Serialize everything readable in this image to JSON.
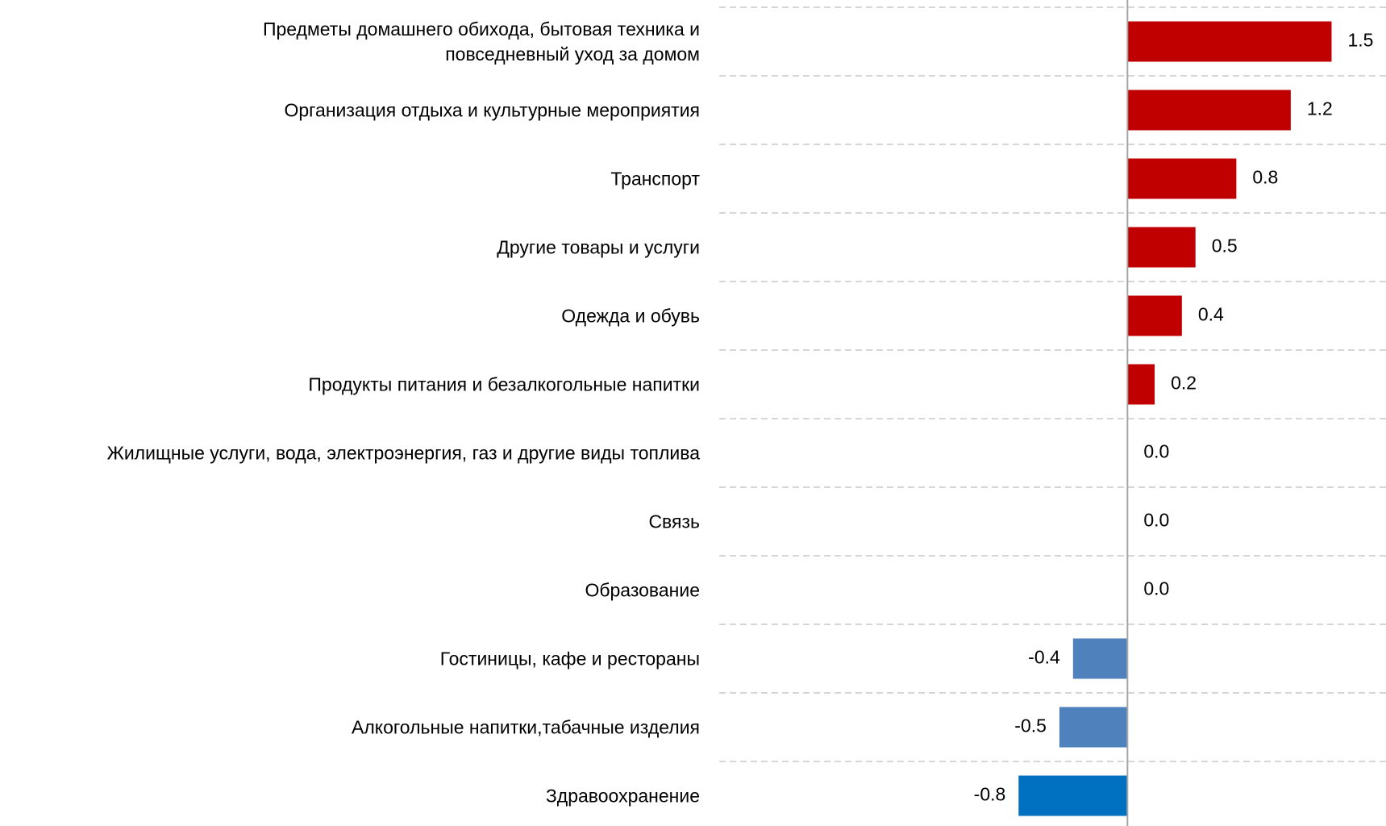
{
  "chart_data": {
    "type": "barh",
    "categories": [
      "Предметы домашнего обихода, бытовая техника и\nповседневный уход за домом",
      "Организация отдыха и культурные мероприятия",
      "Транспорт",
      "Другие товары и услуги",
      "Одежда и обувь",
      "Продукты питания и безалкогольные напитки",
      "Жилищные услуги, вода, электроэнергия, газ и другие виды топлива",
      "Связь",
      "Образование",
      "Гостиницы, кафе и рестораны",
      "Алкогольные напитки,табачные изделия",
      "Здравоохранение"
    ],
    "values": [
      1.5,
      1.2,
      0.8,
      0.5,
      0.4,
      0.2,
      0.0,
      0.0,
      0.0,
      -0.4,
      -0.5,
      -0.8
    ],
    "value_labels": [
      "1.5",
      "1.2",
      "0.8",
      "0.5",
      "0.4",
      "0.2",
      "0.0",
      "0.0",
      "0.0",
      "-0.4",
      "-0.5",
      "-0.8"
    ],
    "colors": [
      "#c00000",
      "#c00000",
      "#c00000",
      "#c00000",
      "#c00000",
      "#c00000",
      "#c00000",
      "#c00000",
      "#c00000",
      "#4f81bd",
      "#4f81bd",
      "#0070c0"
    ],
    "xlim": [
      -3,
      1.9
    ],
    "grid": true
  }
}
